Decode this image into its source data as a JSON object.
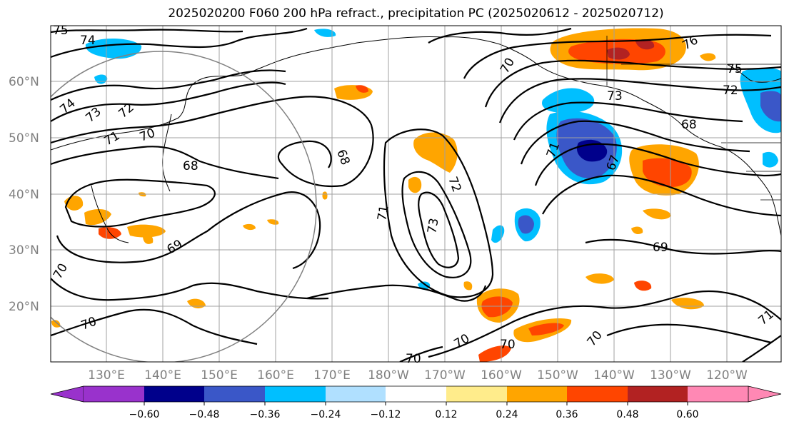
{
  "title": "2025020200 F060 200 hPa refract., precipitation PC (2025020612 - 2025020712)",
  "lat_labels": [
    "60°N",
    "50°N",
    "40°N",
    "30°N",
    "20°N"
  ],
  "lon_labels": [
    "130°E",
    "140°E",
    "150°E",
    "160°E",
    "170°E",
    "180°W",
    "170°W",
    "160°W",
    "150°W",
    "140°W",
    "130°W",
    "120°W"
  ],
  "colorbar": {
    "ticks": [
      "−0.60",
      "−0.48",
      "−0.36",
      "−0.24",
      "−0.12",
      "0.12",
      "0.24",
      "0.36",
      "0.48",
      "0.60"
    ],
    "colors": [
      "#9932cc",
      "#00008b",
      "#3a57c8",
      "#00bfff",
      "#b0e0ff",
      "#ffffff",
      "#ffec8b",
      "#ffa500",
      "#ff4500",
      "#b22222",
      "#ff88b4"
    ]
  },
  "contour_labels": [
    "75",
    "74",
    "74",
    "73",
    "72",
    "71",
    "70",
    "68",
    "68",
    "69",
    "70",
    "70",
    "70",
    "70",
    "71",
    "72",
    "73",
    "73",
    "71",
    "67",
    "68",
    "72",
    "75",
    "76",
    "69",
    "71",
    "70",
    "70",
    "70"
  ]
}
